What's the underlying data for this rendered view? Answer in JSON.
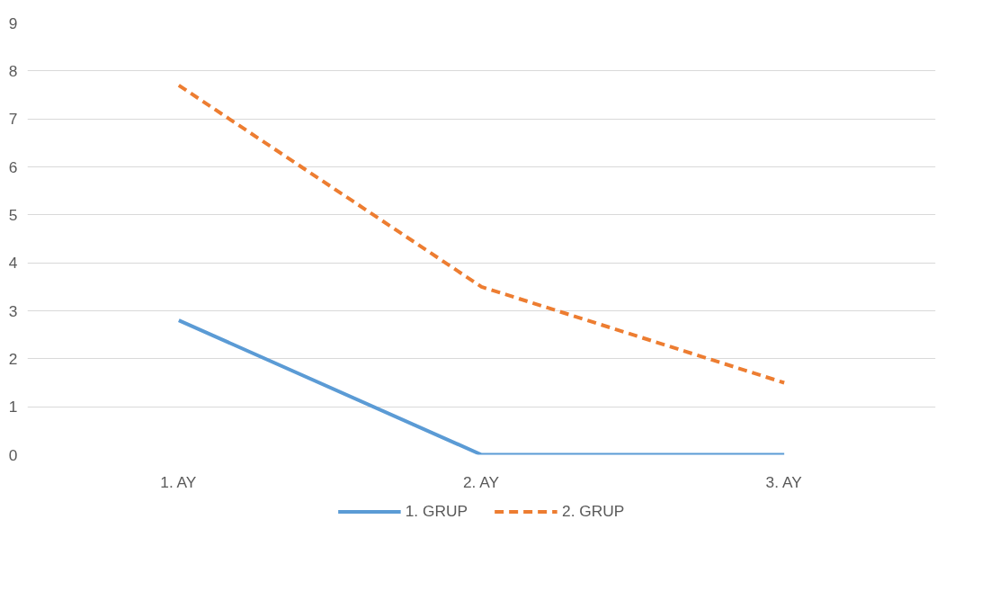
{
  "chart_data": {
    "type": "line",
    "categories": [
      "1. AY",
      "2. AY",
      "3. AY"
    ],
    "series": [
      {
        "name": "1. GRUP",
        "color": "#5b9bd5",
        "values": [
          2.8,
          0,
          0
        ],
        "line_style": "solid"
      },
      {
        "name": "2. GRUP",
        "color": "#ed7d31",
        "values": [
          7.7,
          3.5,
          1.5
        ],
        "line_style": "dashed"
      }
    ],
    "ylim": [
      0,
      9
    ],
    "yticks": [
      0,
      1,
      2,
      3,
      4,
      5,
      6,
      7,
      8,
      9
    ],
    "grid": "y",
    "legend": "bottom",
    "marker": "none"
  }
}
